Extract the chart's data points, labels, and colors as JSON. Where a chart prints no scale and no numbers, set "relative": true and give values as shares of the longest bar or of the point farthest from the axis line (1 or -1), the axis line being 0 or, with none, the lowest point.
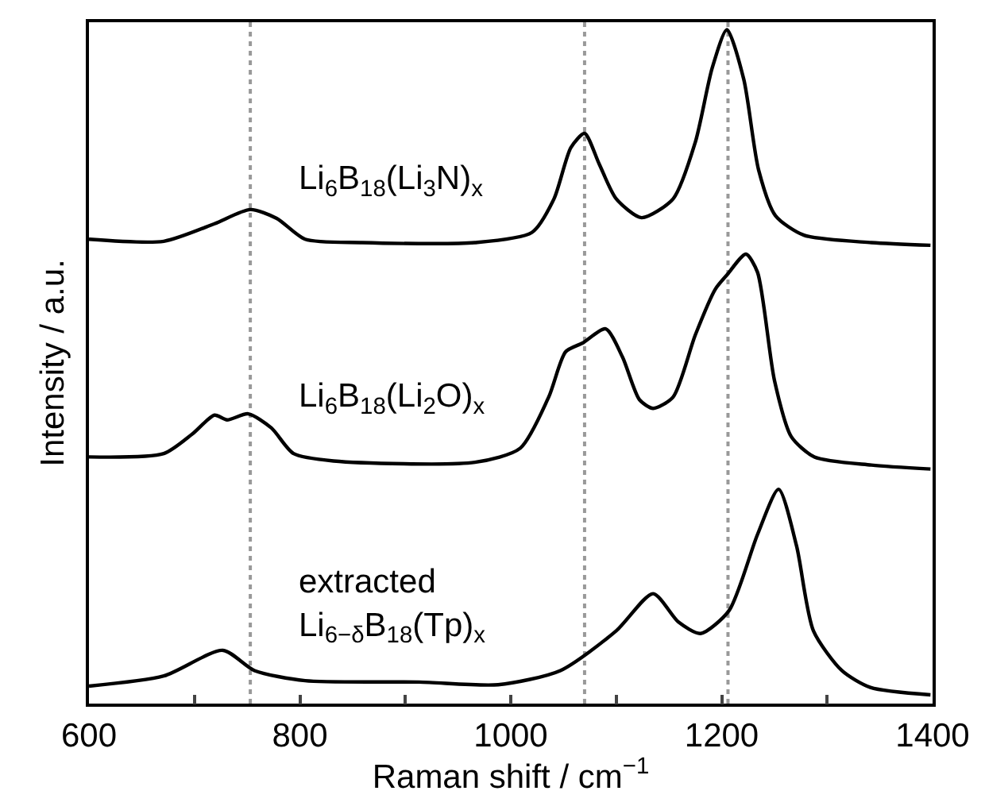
{
  "chart_data": {
    "type": "line",
    "relative": true,
    "xlabel": "Raman shift / cm$^{−1}$",
    "ylabel": "Intensity / a.u.",
    "xlim": [
      600,
      1400
    ],
    "xticks": [
      600,
      {
        "value": 700,
        "label": null
      },
      800,
      {
        "value": 900,
        "label": null
      },
      1000,
      {
        "value": 1100,
        "label": null
      },
      1200,
      {
        "value": 1300,
        "label": null
      },
      1400
    ],
    "tick_labels": "x",
    "grid": false,
    "legend": false,
    "marker": "none",
    "line_style": "solid",
    "ref_lines": [
      {
        "axis": "x",
        "value": 753,
        "color": "#999999",
        "line_style": "dotted"
      },
      {
        "axis": "x",
        "value": 1070,
        "color": "#999999",
        "line_style": "dotted"
      },
      {
        "axis": "x",
        "value": 1206,
        "color": "#999999",
        "line_style": "dotted"
      }
    ],
    "series": [
      {
        "name": "Li$_{6}$B$_{18}$(Li$_{3}$N)$_{x}$",
        "color": "#000000",
        "x": [
          600,
          671,
          719,
          753,
          778,
          805,
          859,
          966,
          1020,
          1041,
          1057,
          1070,
          1084,
          1100,
          1124,
          1154,
          1175,
          1191,
          1205,
          1221,
          1235,
          1251,
          1278,
          1342,
          1398
        ],
        "values": [
          0.689,
          0.686,
          0.712,
          0.733,
          0.72,
          0.689,
          0.684,
          0.684,
          0.699,
          0.749,
          0.825,
          0.846,
          0.8,
          0.749,
          0.721,
          0.749,
          0.833,
          0.943,
          1.0,
          0.926,
          0.792,
          0.724,
          0.695,
          0.684,
          0.68
        ]
      },
      {
        "name": "Li$_{6}$B$_{18}$(Li$_{2}$O)$_{x}$",
        "color": "#000000",
        "x": [
          600,
          671,
          698,
          719,
          731,
          751,
          773,
          794,
          832,
          966,
          1009,
          1036,
          1052,
          1068,
          1090,
          1106,
          1122,
          1135,
          1154,
          1175,
          1194,
          1205,
          1223,
          1234,
          1250,
          1266,
          1288,
          1342,
          1398
        ],
        "values": [
          0.366,
          0.371,
          0.4,
          0.428,
          0.421,
          0.43,
          0.409,
          0.371,
          0.36,
          0.358,
          0.379,
          0.455,
          0.522,
          0.535,
          0.556,
          0.514,
          0.451,
          0.438,
          0.455,
          0.547,
          0.615,
          0.636,
          0.667,
          0.64,
          0.48,
          0.396,
          0.366,
          0.354,
          0.348
        ]
      },
      {
        "name": "extracted\nLi$_{6−δ}$B$_{18}$(Tp)$_{x}$",
        "color": "#000000",
        "x": [
          600,
          671,
          727,
          757,
          805,
          913,
          988,
          1047,
          1100,
          1135,
          1159,
          1180,
          1207,
          1234,
          1254,
          1271,
          1287,
          1314,
          1341,
          1398
        ],
        "values": [
          0.026,
          0.041,
          0.079,
          0.049,
          0.034,
          0.032,
          0.028,
          0.049,
          0.108,
          0.163,
          0.121,
          0.104,
          0.138,
          0.251,
          0.318,
          0.234,
          0.108,
          0.049,
          0.024,
          0.013
        ]
      }
    ]
  }
}
